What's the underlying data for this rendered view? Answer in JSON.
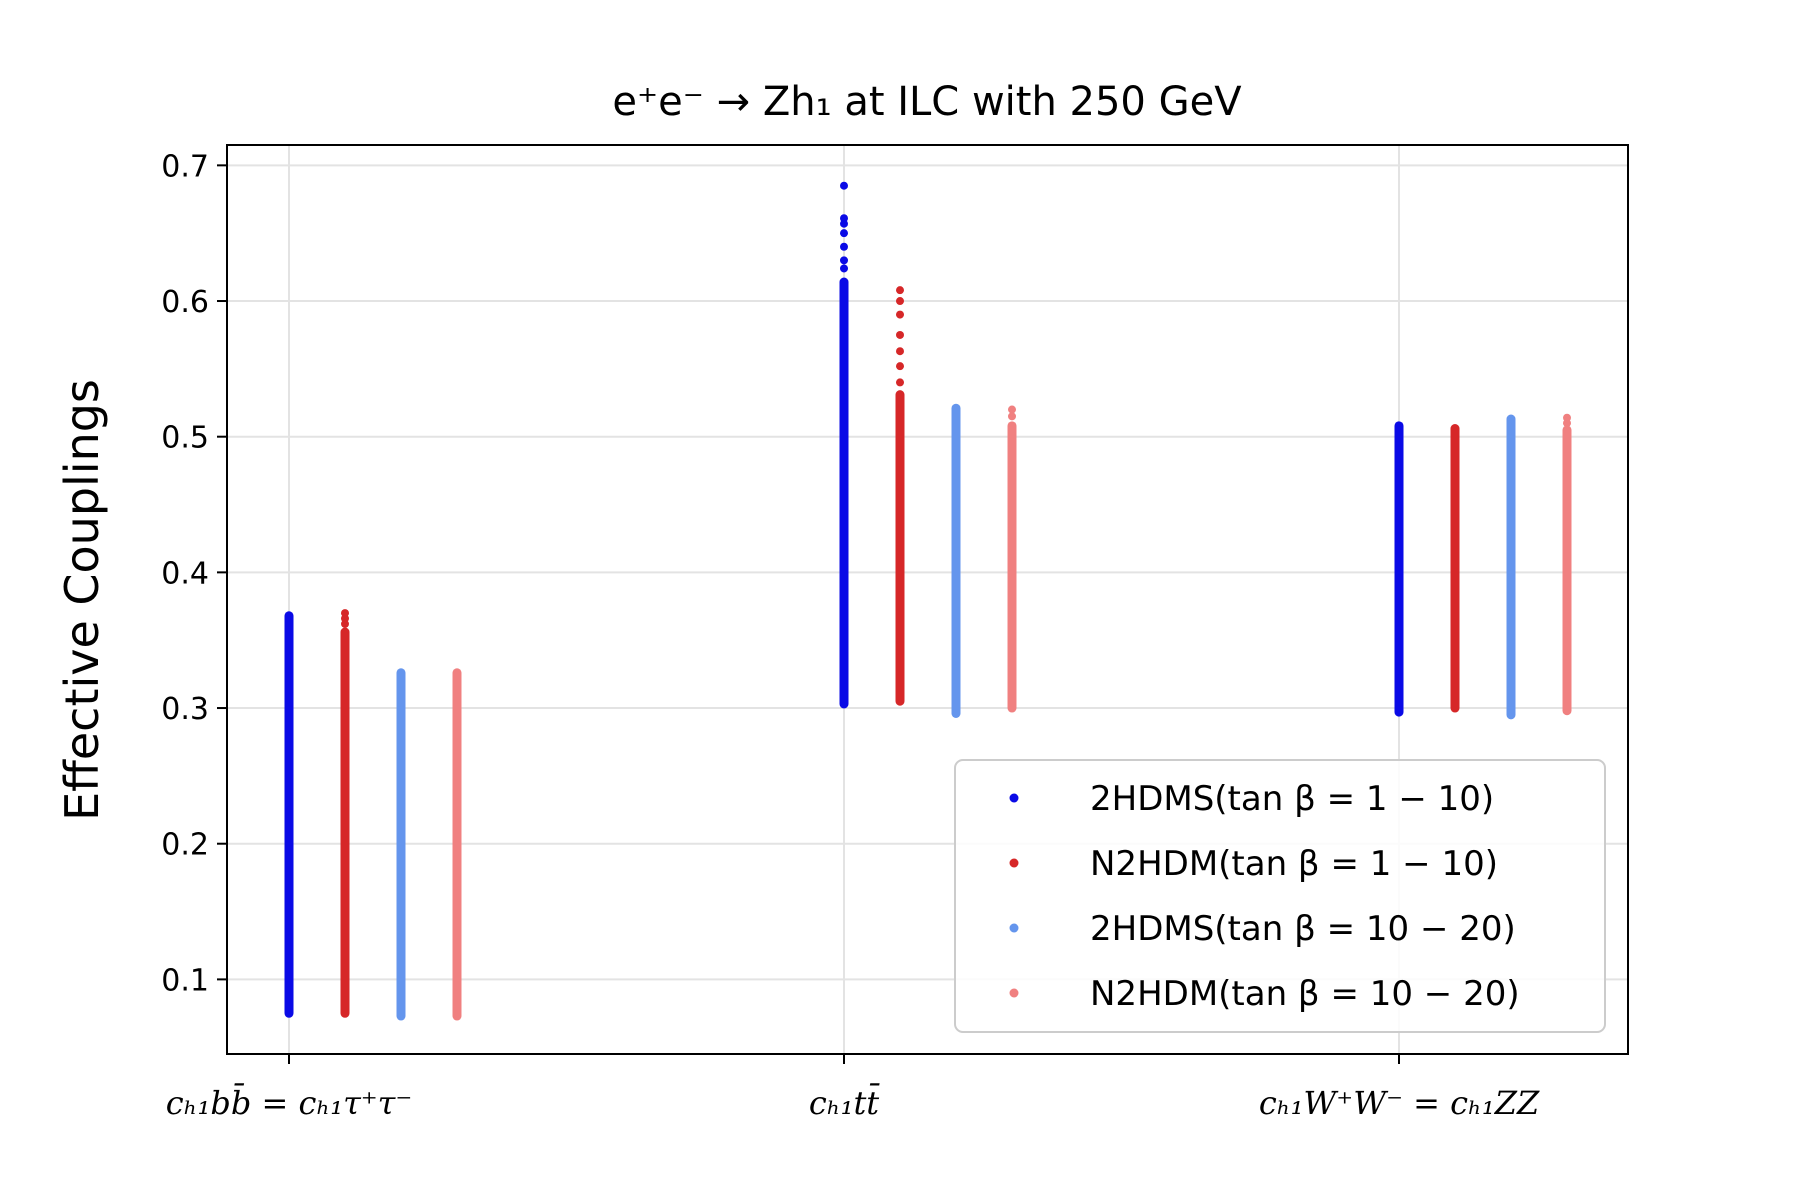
{
  "chart_data": {
    "type": "scatter",
    "title": "e⁺e⁻ → Zh₁ at ILC with 250 GeV",
    "ylabel": "Effective Couplings",
    "xlabel": "",
    "categories": [
      "c_{h1 b b̄} = c_{h1 τ⁺τ⁻}",
      "c_{h1 t t̄}",
      "c_{h1 W⁺W⁻} = c_{h1 ZZ}"
    ],
    "category_labels": [
      "cₕ₁bb̄ = cₕ₁τ⁺τ⁻",
      "cₕ₁tt̄",
      "cₕ₁W⁺W⁻ = cₕ₁ZZ"
    ],
    "ylim": [
      0.045,
      0.715
    ],
    "yticks": [
      "0.1",
      "0.2",
      "0.3",
      "0.4",
      "0.5",
      "0.6",
      "0.7"
    ],
    "grid": true,
    "legend_position": "bottom-right",
    "series": [
      {
        "name": "2HDMS(tan β = 1 − 10)",
        "color": "#0a0ae6",
        "ranges": [
          [
            0.075,
            0.368
          ],
          [
            0.303,
            0.614
          ],
          [
            0.297,
            0.508
          ]
        ],
        "outliers": [
          [],
          [
            0.624,
            0.63,
            0.64,
            0.65,
            0.657,
            0.661,
            0.685
          ],
          []
        ]
      },
      {
        "name": "N2HDM(tan β = 1 − 10)",
        "color": "#d62728",
        "ranges": [
          [
            0.075,
            0.356
          ],
          [
            0.305,
            0.531
          ],
          [
            0.3,
            0.506
          ]
        ],
        "outliers": [
          [
            0.362,
            0.366,
            0.37
          ],
          [
            0.54,
            0.552,
            0.563,
            0.575,
            0.59,
            0.6,
            0.608
          ],
          []
        ]
      },
      {
        "name": "2HDMS(tan β = 10 − 20)",
        "color": "#6495ed",
        "ranges": [
          [
            0.073,
            0.326
          ],
          [
            0.296,
            0.521
          ],
          [
            0.295,
            0.513
          ]
        ],
        "outliers": [
          [],
          [],
          []
        ]
      },
      {
        "name": "N2HDM(tan β = 10 − 20)",
        "color": "#f08080",
        "ranges": [
          [
            0.073,
            0.326
          ],
          [
            0.3,
            0.508
          ],
          [
            0.298,
            0.505
          ]
        ],
        "outliers": [
          [],
          [
            0.515,
            0.52
          ],
          [
            0.51,
            0.514
          ]
        ]
      }
    ]
  }
}
